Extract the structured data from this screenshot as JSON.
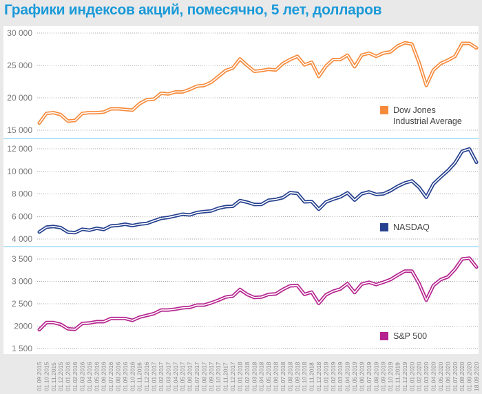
{
  "chart_data": {
    "type": "line",
    "title": "Графики индексов акций, помесячно, 5 лет, долларов",
    "xlabel": "",
    "ylabel": "",
    "grid": true,
    "x": [
      "01.09.2015",
      "01.10.2015",
      "01.11.2015",
      "01.12.2015",
      "01.01.2016",
      "01.02.2016",
      "01.03.2016",
      "01.04.2016",
      "01.05.2016",
      "01.06.2016",
      "01.07.2016",
      "01.08.2016",
      "01.09.2016",
      "01.10.2016",
      "01.11.2016",
      "01.12.2016",
      "01.01.2017",
      "01.02.2017",
      "01.03.2017",
      "01.04.2017",
      "01.05.2017",
      "01.06.2017",
      "01.07.2017",
      "01.08.2017",
      "01.09.2017",
      "01.10.2017",
      "01.11.2017",
      "01.12.2017",
      "01.01.2018",
      "01.02.2018",
      "01.03.2018",
      "01.04.2018",
      "01.05.2018",
      "01.06.2018",
      "01.07.2018",
      "01.08.2018",
      "01.09.2018",
      "01.10.2018",
      "01.11.2018",
      "01.12.2018",
      "01.01.2019",
      "01.02.2019",
      "01.03.2019",
      "01.04.2019",
      "01.05.2019",
      "01.06.2019",
      "01.07.2019",
      "01.08.2019",
      "01.09.2019",
      "01.10.2019",
      "01.11.2019",
      "01.12.2019",
      "01.01.2020",
      "01.02.2020",
      "01.03.2020",
      "01.04.2020",
      "01.05.2020",
      "01.06.2020",
      "01.07.2020",
      "01.08.2020",
      "01.09.2020",
      "18.09.2020"
    ],
    "panels": [
      {
        "name": "Dow Jones Industrial Average",
        "legend_lines": [
          "Dow Jones",
          "Industrial Average"
        ],
        "color": "#f68b3c",
        "ylim": [
          15000,
          30000
        ],
        "yticks": [
          15000,
          20000,
          25000,
          30000
        ],
        "ytick_labels": [
          "15 000",
          "20 000",
          "25 000",
          "30 000"
        ],
        "legend": "right-bottom",
        "values": [
          16100,
          17600,
          17700,
          17400,
          16400,
          16500,
          17600,
          17700,
          17700,
          17800,
          18300,
          18300,
          18200,
          18100,
          19100,
          19700,
          19800,
          20700,
          20600,
          20900,
          20900,
          21300,
          21800,
          21900,
          22400,
          23300,
          24200,
          24600,
          26000,
          25000,
          24100,
          24200,
          24400,
          24300,
          25300,
          25900,
          26400,
          25100,
          25500,
          23300,
          24900,
          25900,
          25900,
          26600,
          24800,
          26600,
          26900,
          26400,
          26900,
          27100,
          28000,
          28500,
          28300,
          25400,
          21900,
          24300,
          25300,
          25800,
          26400,
          28400,
          28400,
          27700
        ]
      },
      {
        "name": "NASDAQ",
        "legend_lines": [
          "NASDAQ"
        ],
        "color": "#25408f",
        "ylim": [
          4000,
          12000
        ],
        "yticks": [
          4000,
          6000,
          8000,
          10000,
          12000
        ],
        "ytick_labels": [
          "4 000",
          "6 000",
          "8 000",
          "10 000",
          "12 000"
        ],
        "legend": "right-bottom",
        "values": [
          4620,
          5050,
          5110,
          5010,
          4610,
          4560,
          4870,
          4780,
          4950,
          4840,
          5160,
          5210,
          5310,
          5190,
          5320,
          5380,
          5610,
          5830,
          5910,
          6050,
          6200,
          6140,
          6350,
          6430,
          6490,
          6730,
          6870,
          6900,
          7410,
          7270,
          7060,
          7070,
          7440,
          7510,
          7670,
          8110,
          8050,
          7300,
          7330,
          6640,
          7280,
          7530,
          7730,
          8100,
          7450,
          8010,
          8180,
          7960,
          8000,
          8290,
          8670,
          8970,
          9150,
          8570,
          7700,
          8890,
          9490,
          10060,
          10750,
          11780,
          11990,
          10800
        ]
      },
      {
        "name": "S&P 500",
        "legend_lines": [
          "S&P 500"
        ],
        "color": "#b5238e",
        "ylim": [
          1500,
          3500
        ],
        "yticks": [
          1500,
          2000,
          2500,
          3000,
          3500
        ],
        "ytick_labels": [
          "1 500",
          "2000",
          "2 500",
          "3 000",
          "3 500"
        ],
        "legend": "right-bottom",
        "values": [
          1920,
          2080,
          2080,
          2040,
          1940,
          1930,
          2060,
          2070,
          2100,
          2100,
          2170,
          2170,
          2170,
          2130,
          2200,
          2240,
          2280,
          2360,
          2360,
          2380,
          2410,
          2420,
          2470,
          2470,
          2520,
          2580,
          2650,
          2670,
          2820,
          2710,
          2640,
          2650,
          2710,
          2720,
          2820,
          2900,
          2910,
          2710,
          2760,
          2510,
          2700,
          2780,
          2830,
          2950,
          2750,
          2940,
          2980,
          2930,
          2980,
          3040,
          3140,
          3230,
          3230,
          2950,
          2580,
          2910,
          3040,
          3100,
          3270,
          3500,
          3520,
          3320
        ]
      }
    ]
  }
}
